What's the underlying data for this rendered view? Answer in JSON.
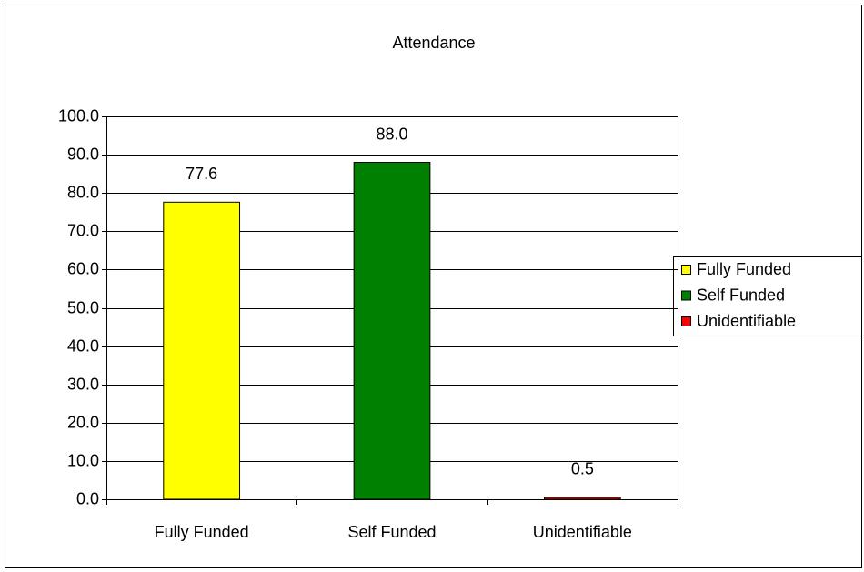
{
  "chart_data": {
    "type": "bar",
    "title": "Attendance",
    "categories": [
      "Fully Funded",
      "Self Funded",
      "Unidentifiable"
    ],
    "values": [
      77.6,
      88.0,
      0.5
    ],
    "value_labels": [
      "77.6",
      "88.0",
      "0.5"
    ],
    "colors": [
      "#ffff00",
      "#008000",
      "#ff0000"
    ],
    "ylim": [
      0,
      100
    ],
    "yticks": [
      {
        "value": 0,
        "label": "0.0"
      },
      {
        "value": 10,
        "label": "10.0"
      },
      {
        "value": 20,
        "label": "20.0"
      },
      {
        "value": 30,
        "label": "30.0"
      },
      {
        "value": 40,
        "label": "40.0"
      },
      {
        "value": 50,
        "label": "50.0"
      },
      {
        "value": 60,
        "label": "60.0"
      },
      {
        "value": 70,
        "label": "70.0"
      },
      {
        "value": 80,
        "label": "80.0"
      },
      {
        "value": 90,
        "label": "90.0"
      },
      {
        "value": 100,
        "label": "100.0"
      }
    ],
    "grid": true,
    "legend": "right"
  }
}
